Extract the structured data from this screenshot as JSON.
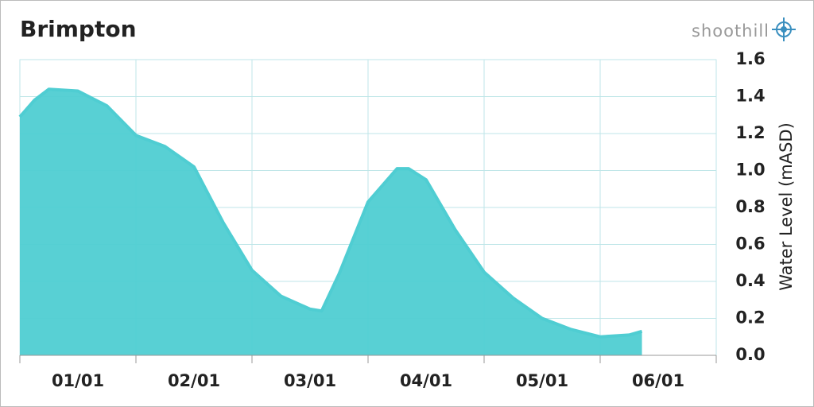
{
  "chart_data": {
    "type": "area",
    "title": "Brimpton",
    "brand": "shoothill",
    "y_label": "Water Level (mASD)",
    "categories": [
      "01/01",
      "02/01",
      "03/01",
      "04/01",
      "05/01",
      "06/01"
    ],
    "xlim": [
      0,
      6
    ],
    "xticks": [
      0,
      1,
      2,
      3,
      4,
      5,
      6
    ],
    "ylim": [
      0,
      1.6
    ],
    "yticks": [
      {
        "value": 0,
        "label": "0.0"
      },
      0.2,
      0.4,
      0.6,
      0.8,
      {
        "value": 1,
        "label": "1.0"
      },
      1.2,
      1.4,
      1.6
    ],
    "grid": true,
    "series": [
      {
        "color": "#4fcdd2",
        "x": [
          0,
          0.125,
          0.25,
          0.5,
          0.75,
          1,
          1.25,
          1.5,
          1.75,
          2,
          2.25,
          2.5,
          2.6,
          2.75,
          3,
          3.25,
          3.35,
          3.5,
          3.75,
          4,
          4.25,
          4.5,
          4.75,
          5,
          5.25,
          5.36
        ],
        "values": [
          1.29,
          1.38,
          1.44,
          1.43,
          1.35,
          1.19,
          1.13,
          1.02,
          0.72,
          0.46,
          0.32,
          0.25,
          0.24,
          0.44,
          0.83,
          1.01,
          1.01,
          0.95,
          0.68,
          0.45,
          0.31,
          0.2,
          0.14,
          0.1,
          0.11,
          0.13
        ]
      }
    ]
  }
}
